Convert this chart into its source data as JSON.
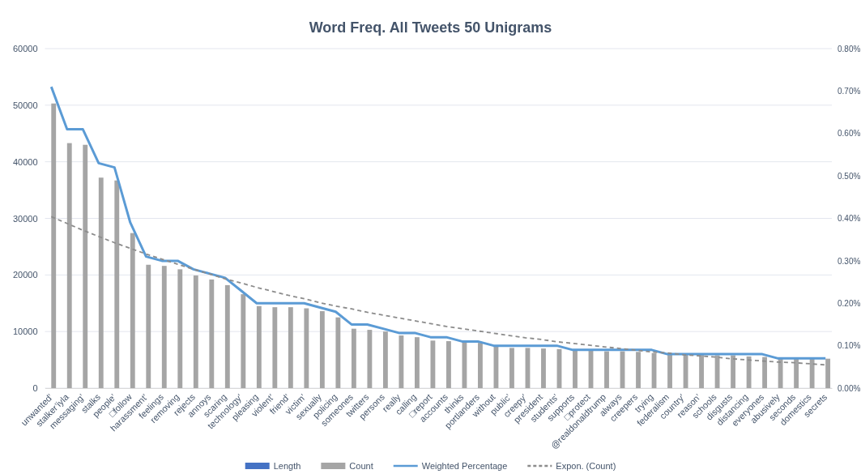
{
  "chart_data": {
    "type": "bar",
    "title": "Word Freq. All Tweets 50 Unigrams",
    "categories": [
      "unwanted’",
      "stalker’iyla",
      "messaging’",
      "stalks",
      "people’",
      "□follow",
      "harassment’",
      "feelings",
      "removing",
      "rejects",
      "annoys",
      "scaring",
      "technology’",
      "pleasing",
      "violent’",
      "friend’",
      "victim’",
      "sexually",
      "policing",
      "someones",
      "twitters",
      "persons",
      "really",
      "calling",
      "□report",
      "accounts",
      "thinks",
      "portlanders",
      "without",
      "public’",
      "creepy’",
      "president",
      "students’",
      "supports",
      "□protect",
      "@realdonaldtrump",
      "always",
      "creepers",
      "trying",
      "federalism",
      "country’",
      "reason’",
      "schools",
      "disgusts",
      "distancing",
      "everyones",
      "abusively",
      "seconds",
      "domestics",
      "secrets"
    ],
    "series": [
      {
        "name": "Length",
        "color": "#4472c4",
        "values": [
          null,
          null,
          null,
          null,
          null,
          null,
          null,
          null,
          null,
          null,
          null,
          null,
          null,
          null,
          null,
          null,
          null,
          null,
          null,
          null,
          null,
          null,
          null,
          null,
          null,
          null,
          null,
          null,
          null,
          null,
          null,
          null,
          null,
          null,
          null,
          null,
          null,
          null,
          null,
          null,
          null,
          null,
          null,
          null,
          null,
          null,
          null,
          null,
          null,
          null
        ]
      },
      {
        "name": "Count",
        "color": "#a5a5a5",
        "values": [
          50300,
          43300,
          43000,
          37200,
          36700,
          27400,
          21800,
          21600,
          21000,
          19900,
          19200,
          18200,
          16600,
          14500,
          14300,
          14300,
          14100,
          13600,
          12500,
          10500,
          10300,
          10000,
          9300,
          9000,
          8400,
          8300,
          8200,
          8000,
          7500,
          7100,
          7100,
          7000,
          6900,
          6700,
          6700,
          6500,
          6500,
          6400,
          6200,
          6000,
          6000,
          5900,
          5800,
          5800,
          5600,
          5500,
          5400,
          5300,
          5300,
          5200
        ]
      },
      {
        "name": "Weighted Percentage",
        "type": "line",
        "axis": "y2",
        "color": "#5b9bd5",
        "line_style": "solid",
        "values": [
          0.71,
          0.61,
          0.61,
          0.53,
          0.52,
          0.39,
          0.31,
          0.3,
          0.3,
          0.28,
          0.27,
          0.26,
          0.23,
          0.2,
          0.2,
          0.2,
          0.2,
          0.19,
          0.18,
          0.15,
          0.15,
          0.14,
          0.13,
          0.13,
          0.12,
          0.12,
          0.11,
          0.11,
          0.1,
          0.1,
          0.1,
          0.1,
          0.1,
          0.09,
          0.09,
          0.09,
          0.09,
          0.09,
          0.09,
          0.08,
          0.08,
          0.08,
          0.08,
          0.08,
          0.08,
          0.08,
          0.07,
          0.07,
          0.07,
          0.07
        ]
      },
      {
        "name": "Expon. (Count)",
        "type": "line",
        "color": "#8c8c8c",
        "line_style": "dashed",
        "values": [
          30300,
          29100,
          27900,
          26800,
          25700,
          24700,
          23700,
          22800,
          21900,
          21000,
          20200,
          19300,
          18600,
          17800,
          17100,
          16400,
          15800,
          15100,
          14500,
          14000,
          13400,
          12900,
          12400,
          11900,
          11400,
          10900,
          10500,
          10100,
          9700,
          9300,
          8900,
          8600,
          8200,
          7900,
          7600,
          7300,
          7000,
          6700,
          6400,
          6200,
          5900,
          5700,
          5500,
          5200,
          5000,
          4800,
          4600,
          4500,
          4300,
          4100
        ]
      }
    ],
    "ylim": [
      0,
      60000
    ],
    "yticks": [
      0,
      10000,
      20000,
      30000,
      40000,
      50000,
      60000
    ],
    "y2lim": [
      0,
      0.8
    ],
    "y2ticks": [
      {
        "value": 0,
        "label": "0.00%"
      },
      {
        "value": 0.1,
        "label": "0.10%"
      },
      {
        "value": 0.2,
        "label": "0.20%"
      },
      {
        "value": 0.3,
        "label": "0.30%"
      },
      {
        "value": 0.4,
        "label": "0.40%"
      },
      {
        "value": 0.5,
        "label": "0.50%"
      },
      {
        "value": 0.6,
        "label": "0.60%"
      },
      {
        "value": 0.7,
        "label": "0.70%"
      },
      {
        "value": 0.8,
        "label": "0.80%"
      }
    ],
    "grid": "y",
    "legend": "bottom"
  }
}
